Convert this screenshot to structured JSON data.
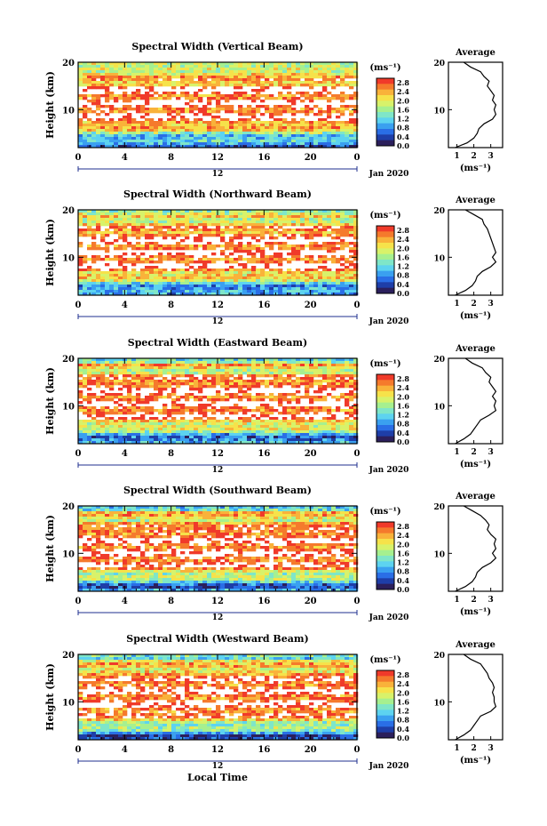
{
  "figure": {
    "x_axis_label": "Local Time",
    "date_label": "Jan 2020",
    "day_label": "12",
    "colorbar_unit": "(ms⁻¹)",
    "colorbar_ticks": [
      "0.0",
      "0.4",
      "0.8",
      "1.2",
      "1.6",
      "2.0",
      "2.4",
      "2.8"
    ],
    "colorscale": [
      "#2b1f5c",
      "#1e3ea8",
      "#2a6ee6",
      "#3aa0f0",
      "#5dd3f0",
      "#7fe6c8",
      "#a6f08f",
      "#d8f26a",
      "#f6e24a",
      "#f9b23a",
      "#f57a2c",
      "#f03a2a"
    ],
    "white_color": "#ffffff"
  },
  "chart_data": [
    {
      "type": "heatmap",
      "title": "Spectral Width (Vertical Beam)",
      "ylabel": "Height (km)",
      "x_ticks": [
        "0",
        "4",
        "8",
        "12",
        "16",
        "20",
        "0"
      ],
      "y_ticks": [
        "10",
        "20"
      ],
      "xlim": [
        0,
        24
      ],
      "ylim": [
        2,
        20
      ],
      "clim": [
        0,
        3.0
      ],
      "average_title": "Average",
      "average_x_ticks": [
        "1",
        "2",
        "3"
      ],
      "average_xlabel": "(ms⁻¹)",
      "average_y_ticks": [
        "10",
        "20"
      ],
      "average_profile": {
        "height": [
          2,
          3,
          4,
          5,
          6,
          7,
          8,
          9,
          10,
          11,
          12,
          13,
          14,
          15,
          16,
          17,
          18,
          19,
          20
        ],
        "width": [
          0.9,
          1.6,
          2.0,
          2.2,
          2.3,
          2.6,
          3.1,
          3.3,
          3.2,
          3.3,
          3.1,
          3.2,
          3.0,
          2.8,
          2.9,
          2.6,
          2.4,
          1.8,
          1.4
        ]
      }
    },
    {
      "type": "heatmap",
      "title": "Spectral Width (Northward Beam)",
      "ylabel": "Height (km)",
      "x_ticks": [
        "0",
        "4",
        "8",
        "12",
        "16",
        "20",
        "0"
      ],
      "y_ticks": [
        "10",
        "20"
      ],
      "xlim": [
        0,
        24
      ],
      "ylim": [
        2,
        20
      ],
      "clim": [
        0,
        3.0
      ],
      "average_title": "Average",
      "average_x_ticks": [
        "1",
        "2",
        "3"
      ],
      "average_xlabel": "(ms⁻¹)",
      "average_y_ticks": [
        "10",
        "20"
      ],
      "average_profile": {
        "height": [
          2,
          3,
          4,
          5,
          6,
          7,
          8,
          9,
          10,
          11,
          12,
          13,
          14,
          15,
          16,
          17,
          18,
          19,
          20
        ],
        "width": [
          0.9,
          1.5,
          1.9,
          2.1,
          2.2,
          2.5,
          3.0,
          3.3,
          3.1,
          3.3,
          3.2,
          3.1,
          3.0,
          2.9,
          2.8,
          2.6,
          2.5,
          2.0,
          1.5
        ]
      }
    },
    {
      "type": "heatmap",
      "title": "Spectral Width (Eastward Beam)",
      "ylabel": "Height (km)",
      "x_ticks": [
        "0",
        "4",
        "8",
        "12",
        "16",
        "20",
        "0"
      ],
      "y_ticks": [
        "10",
        "20"
      ],
      "xlim": [
        0,
        24
      ],
      "ylim": [
        2,
        20
      ],
      "clim": [
        0,
        3.0
      ],
      "average_title": "Average",
      "average_x_ticks": [
        "1",
        "2",
        "3"
      ],
      "average_xlabel": "(ms⁻¹)",
      "average_y_ticks": [
        "10",
        "20"
      ],
      "average_profile": {
        "height": [
          2,
          3,
          4,
          5,
          6,
          7,
          8,
          9,
          10,
          11,
          12,
          13,
          14,
          15,
          16,
          17,
          18,
          19,
          20
        ],
        "width": [
          0.9,
          1.4,
          1.8,
          2.0,
          2.2,
          2.4,
          2.9,
          3.3,
          3.2,
          3.3,
          3.1,
          3.3,
          3.1,
          2.9,
          3.0,
          2.7,
          2.5,
          1.9,
          1.5
        ]
      }
    },
    {
      "type": "heatmap",
      "title": "Spectral Width (Southward Beam)",
      "ylabel": "Height (km)",
      "x_ticks": [
        "0",
        "4",
        "8",
        "12",
        "16",
        "20",
        "0"
      ],
      "y_ticks": [
        "10",
        "20"
      ],
      "xlim": [
        0,
        24
      ],
      "ylim": [
        2,
        20
      ],
      "clim": [
        0,
        3.0
      ],
      "average_title": "Average",
      "average_x_ticks": [
        "1",
        "2",
        "3"
      ],
      "average_xlabel": "(ms⁻¹)",
      "average_y_ticks": [
        "10",
        "20"
      ],
      "average_profile": {
        "height": [
          2,
          3,
          4,
          5,
          6,
          7,
          8,
          9,
          10,
          11,
          12,
          13,
          14,
          15,
          16,
          17,
          18,
          19,
          20
        ],
        "width": [
          0.9,
          1.5,
          1.9,
          2.1,
          2.2,
          2.5,
          3.0,
          3.3,
          3.1,
          3.3,
          3.2,
          3.3,
          3.0,
          2.8,
          2.9,
          2.7,
          2.4,
          1.9,
          1.4
        ]
      }
    },
    {
      "type": "heatmap",
      "title": "Spectral Width (Westward Beam)",
      "ylabel": "Height (km)",
      "x_ticks": [
        "0",
        "4",
        "8",
        "12",
        "16",
        "20",
        "0"
      ],
      "y_ticks": [
        "10",
        "20"
      ],
      "xlim": [
        0,
        24
      ],
      "ylim": [
        2,
        20
      ],
      "clim": [
        0,
        3.0
      ],
      "average_title": "Average",
      "average_x_ticks": [
        "1",
        "2",
        "3"
      ],
      "average_xlabel": "(ms⁻¹)",
      "average_y_ticks": [
        "10",
        "20"
      ],
      "average_profile": {
        "height": [
          2,
          3,
          4,
          5,
          6,
          7,
          8,
          9,
          10,
          11,
          12,
          13,
          14,
          15,
          16,
          17,
          18,
          19,
          20
        ],
        "width": [
          0.9,
          1.4,
          1.8,
          2.0,
          2.2,
          2.4,
          3.0,
          3.3,
          3.2,
          3.2,
          3.1,
          3.2,
          3.1,
          2.9,
          2.8,
          2.6,
          2.4,
          1.8,
          1.4
        ]
      }
    }
  ]
}
